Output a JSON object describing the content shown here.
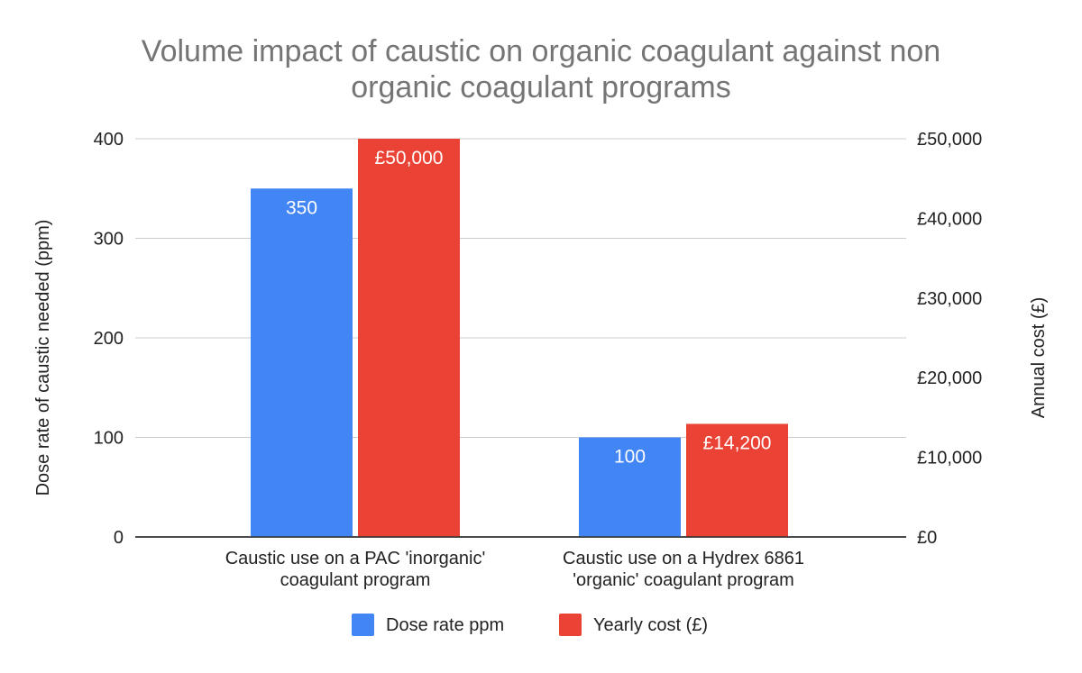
{
  "chart_data": {
    "type": "bar",
    "title": "Volume impact of caustic on organic coagulant against non organic coagulant programs",
    "title_lines": [
      "Volume impact of caustic on organic coagulant against non",
      "organic coagulant programs"
    ],
    "categories": [
      [
        "Caustic use on a PAC 'inorganic'",
        "coagulant program"
      ],
      [
        "Caustic use on a Hydrex 6861",
        "'organic' coagulant program"
      ]
    ],
    "series": [
      {
        "name": "Dose rate ppm",
        "axis": "left",
        "color": "#4285f4",
        "values": [
          350,
          100
        ],
        "labels": [
          "350",
          "100"
        ]
      },
      {
        "name": "Yearly cost (£)",
        "axis": "right",
        "color": "#ea4335",
        "values": [
          50000,
          14200
        ],
        "labels": [
          "£50,000",
          "£14,200"
        ]
      }
    ],
    "ylabel_left": "Dose rate of caustic needed (ppm)",
    "ylabel_right": "Annual cost (£)",
    "ylim_left": [
      0,
      400
    ],
    "ylim_right": [
      0,
      50000
    ],
    "yticks_left": [
      "0",
      "100",
      "200",
      "300",
      "400"
    ],
    "yticks_right": [
      "£0",
      "£10,000",
      "£20,000",
      "£30,000",
      "£40,000",
      "£50,000"
    ],
    "grid": true,
    "legend": "bottom"
  }
}
